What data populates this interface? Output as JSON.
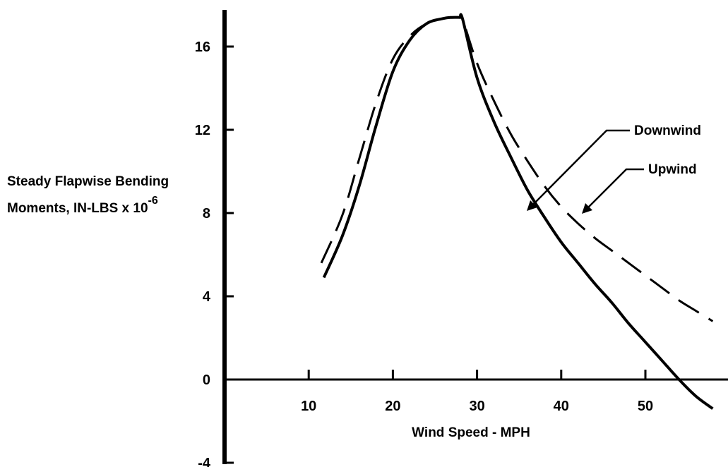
{
  "chart_data": {
    "type": "line",
    "title": "",
    "ylabel": {
      "line1": "Steady Flapwise Bending",
      "line2": "Moments, IN-LBS x 10",
      "exponent": "-6"
    },
    "xlabel": "Wind Speed - MPH",
    "xlim": [
      0,
      58
    ],
    "ylim": [
      -4,
      17.5
    ],
    "xticks": [
      "10",
      "20",
      "30",
      "40",
      "50"
    ],
    "yticks": [
      "16",
      "12",
      "8",
      "4",
      "0",
      "-4"
    ],
    "grid": false,
    "legend": "callout labels at right",
    "series": [
      {
        "name": "Downwind",
        "style": "solid",
        "x": [
          11.8,
          14,
          16,
          18,
          20,
          22,
          24,
          26,
          27,
          28,
          28.3,
          30,
          32,
          34,
          36,
          38,
          40,
          42,
          44,
          46,
          48,
          50,
          52,
          54,
          56,
          58
        ],
        "y": [
          4.9,
          6.9,
          9.3,
          12.2,
          14.8,
          16.3,
          17.1,
          17.35,
          17.4,
          17.4,
          17.3,
          14.5,
          12.4,
          10.7,
          9.1,
          7.8,
          6.6,
          5.6,
          4.6,
          3.7,
          2.7,
          1.8,
          0.9,
          0.0,
          -0.8,
          -1.4
        ]
      },
      {
        "name": "Upwind",
        "style": "dashed",
        "x": [
          11.5,
          14,
          16,
          18,
          20,
          22,
          24,
          26,
          27,
          28,
          28.3,
          30,
          32,
          34,
          36,
          38,
          40,
          42,
          44,
          46,
          48,
          50,
          52,
          54,
          56,
          58
        ],
        "y": [
          5.6,
          7.9,
          10.6,
          13.3,
          15.4,
          16.5,
          17.1,
          17.35,
          17.4,
          17.4,
          17.3,
          15.2,
          13.4,
          11.8,
          10.5,
          9.3,
          8.3,
          7.5,
          6.8,
          6.2,
          5.6,
          5.0,
          4.4,
          3.8,
          3.3,
          2.8
        ]
      }
    ],
    "annotations": [
      "Downwind",
      "Upwind"
    ]
  }
}
